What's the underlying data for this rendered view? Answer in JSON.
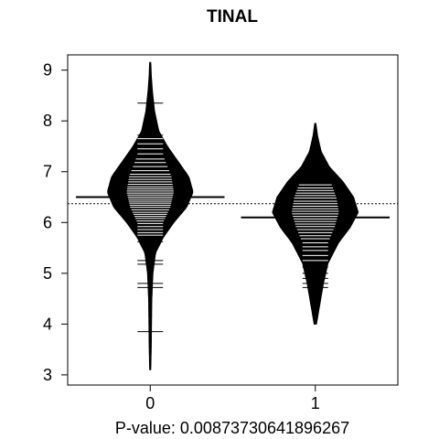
{
  "chart_data": {
    "type": "beanplot",
    "title": "TINAL",
    "xlabel": "P-value: 0.00873730641896267",
    "ylabel": "",
    "ylim": [
      2.8,
      9.3
    ],
    "yticks": [
      3,
      4,
      5,
      6,
      7,
      8,
      9
    ],
    "categories": [
      "0",
      "1"
    ],
    "overall_mean": 6.37,
    "series": [
      {
        "group": "0",
        "mean": 6.5,
        "min": 3.1,
        "max": 9.15,
        "density": [
          [
            3.1,
            0.005
          ],
          [
            3.6,
            0.01
          ],
          [
            4.0,
            0.012
          ],
          [
            4.5,
            0.015
          ],
          [
            5.0,
            0.025
          ],
          [
            5.4,
            0.05
          ],
          [
            5.7,
            0.12
          ],
          [
            6.0,
            0.22
          ],
          [
            6.3,
            0.34
          ],
          [
            6.6,
            0.4
          ],
          [
            6.9,
            0.36
          ],
          [
            7.2,
            0.26
          ],
          [
            7.5,
            0.16
          ],
          [
            7.8,
            0.08
          ],
          [
            8.2,
            0.04
          ],
          [
            8.6,
            0.02
          ],
          [
            8.9,
            0.01
          ],
          [
            9.15,
            0.005
          ]
        ],
        "observations": [
          3.85,
          4.72,
          4.8,
          5.18,
          5.25,
          5.62,
          5.68,
          5.75,
          5.8,
          5.86,
          5.92,
          5.98,
          6.03,
          6.08,
          6.12,
          6.16,
          6.2,
          6.25,
          6.3,
          6.34,
          6.38,
          6.42,
          6.46,
          6.5,
          6.54,
          6.58,
          6.62,
          6.66,
          6.7,
          6.75,
          6.8,
          6.85,
          6.9,
          6.95,
          7.02,
          7.1,
          7.18,
          7.25,
          7.35,
          7.45,
          7.55,
          7.65,
          7.72,
          8.35
        ]
      },
      {
        "group": "1",
        "mean": 6.1,
        "min": 4.0,
        "max": 7.95,
        "density": [
          [
            4.0,
            0.01
          ],
          [
            4.4,
            0.04
          ],
          [
            4.8,
            0.07
          ],
          [
            5.2,
            0.11
          ],
          [
            5.6,
            0.2
          ],
          [
            5.9,
            0.3
          ],
          [
            6.2,
            0.37
          ],
          [
            6.5,
            0.33
          ],
          [
            6.8,
            0.24
          ],
          [
            7.1,
            0.12
          ],
          [
            7.4,
            0.05
          ],
          [
            7.7,
            0.02
          ],
          [
            7.95,
            0.005
          ]
        ],
        "observations": [
          4.72,
          4.8,
          4.9,
          5.0,
          5.12,
          5.25,
          5.35,
          5.45,
          5.52,
          5.6,
          5.68,
          5.74,
          5.8,
          5.86,
          5.92,
          5.97,
          6.02,
          6.07,
          6.12,
          6.17,
          6.22,
          6.27,
          6.32,
          6.37,
          6.42,
          6.48,
          6.53,
          6.58,
          6.63,
          6.68,
          6.74,
          7.15
        ]
      }
    ]
  }
}
